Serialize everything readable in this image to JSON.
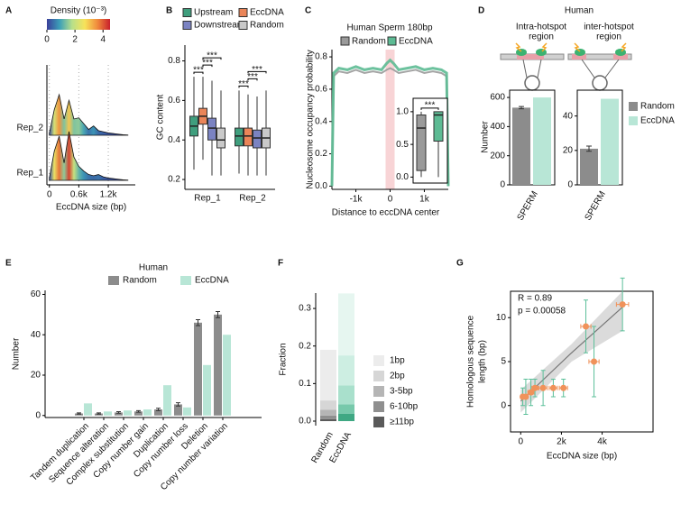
{
  "chart_data": [
    {
      "type": "ridgeline",
      "label": "A",
      "colorbar_title": "Density (10⁻³)",
      "colorbar_lim": [
        0,
        4.5
      ],
      "colorbar_ticks": [
        0,
        2,
        4
      ],
      "colormap": [
        "#3a3f9a",
        "#3b9fb8",
        "#b8e08a",
        "#f7e35a",
        "#f08a3c",
        "#c8202c"
      ],
      "xlabel": "EccDNA size (bp)",
      "x": [
        0,
        100,
        200,
        300,
        400,
        500,
        600,
        700,
        800,
        900,
        1000,
        1100,
        1200,
        1300,
        1400,
        1500,
        1600
      ],
      "xlim": [
        -50,
        1750
      ],
      "xticks": [
        0,
        {
          "value": 600,
          "label": "0.6k"
        },
        {
          "value": 1200,
          "label": "1.2k"
        }
      ],
      "grid": true,
      "series": [
        {
          "name": "Rep_2",
          "values": [
            0.2,
            2.2,
            3.5,
            1.4,
            3.0,
            1.4,
            1.5,
            1.0,
            0.5,
            0.8,
            0.4,
            0.3,
            0.2,
            0.15,
            0.1,
            0.05,
            0.02
          ]
        },
        {
          "name": "Rep_1",
          "values": [
            0.2,
            2.5,
            3.8,
            1.5,
            4.2,
            2.0,
            1.2,
            0.8,
            0.5,
            0.4,
            0.5,
            0.3,
            0.2,
            0.15,
            0.1,
            0.05,
            0.02
          ]
        }
      ]
    },
    {
      "type": "box",
      "label": "B",
      "ylabel": "GC content",
      "categories": [
        "Rep_1",
        "Rep_2"
      ],
      "ylim": [
        0.15,
        0.88
      ],
      "yticks": [
        0.2,
        0.4,
        0.6,
        0.8
      ],
      "series": [
        {
          "name": "Upstream",
          "color": "#3f9e7d",
          "stats": [
            [
              0.25,
              0.42,
              0.47,
              0.52,
              0.72
            ],
            [
              0.23,
              0.37,
              0.42,
              0.46,
              0.65
            ]
          ]
        },
        {
          "name": "EccDNA",
          "color": "#ea8559",
          "stats": [
            [
              0.3,
              0.48,
              0.52,
              0.56,
              0.72
            ],
            [
              0.22,
              0.37,
              0.42,
              0.46,
              0.63
            ]
          ]
        },
        {
          "name": "Downstream",
          "color": "#7b83c2",
          "stats": [
            [
              0.22,
              0.4,
              0.46,
              0.51,
              0.7
            ],
            [
              0.22,
              0.36,
              0.41,
              0.45,
              0.62
            ]
          ]
        },
        {
          "name": "Random",
          "color": "#c9c9c9",
          "stats": [
            [
              0.22,
              0.36,
              0.4,
              0.46,
              0.65
            ],
            [
              0.22,
              0.36,
              0.41,
              0.46,
              0.65
            ]
          ]
        }
      ],
      "annotations": [
        "***",
        "***",
        "***",
        "***",
        "***",
        "***"
      ]
    },
    {
      "type": "line",
      "label": "C",
      "title": "Human Sperm 180bp",
      "xlabel": "Distance to eccDNA center",
      "ylabel": "Nucleosome occupancy probability",
      "x": [
        -1700,
        -1650,
        -1500,
        -1250,
        -1000,
        -750,
        -500,
        -250,
        -100,
        0,
        100,
        250,
        500,
        750,
        1000,
        1250,
        1500,
        1650,
        1700
      ],
      "xlim": [
        -1700,
        1700
      ],
      "xticks": [
        {
          "value": -1000,
          "label": "-1k"
        },
        0,
        {
          "value": 1000,
          "label": "1k"
        }
      ],
      "ylim": [
        -0.02,
        0.845
      ],
      "yticks": [
        {
          "value": 0,
          "label": "0.0"
        },
        0.2,
        0.4,
        0.6,
        0.8
      ],
      "highlight_x": 0,
      "highlight_color": "#f6c9cc",
      "series": [
        {
          "name": "Random",
          "color": "#9a9a9a",
          "values": [
            0,
            0.68,
            0.71,
            0.7,
            0.72,
            0.7,
            0.71,
            0.7,
            0.72,
            0.73,
            0.72,
            0.7,
            0.71,
            0.72,
            0.7,
            0.71,
            0.7,
            0.68,
            0
          ]
        },
        {
          "name": "EccDNA",
          "color": "#5dbb94",
          "values": [
            0,
            0.7,
            0.73,
            0.72,
            0.74,
            0.72,
            0.73,
            0.72,
            0.76,
            0.78,
            0.76,
            0.72,
            0.73,
            0.74,
            0.72,
            0.73,
            0.72,
            0.7,
            0
          ]
        }
      ],
      "inset": {
        "ylim": [
          -0.05,
          1.15
        ],
        "yticks": [
          {
            "value": 0,
            "label": "0.0"
          },
          0.5,
          {
            "value": 1,
            "label": "1.0"
          }
        ],
        "stats": [
          [
            0,
            0.1,
            0.75,
            0.95,
            1
          ],
          [
            0,
            0.55,
            0.95,
            1,
            1
          ]
        ],
        "annotation": "***"
      }
    },
    {
      "type": "bar_pair",
      "label": "D",
      "title": "Human",
      "ylabel": "Number",
      "categories": [
        "SPERM"
      ],
      "series": [
        {
          "name": "Random",
          "color": "#8c8c8c"
        },
        {
          "name": "EccDNA",
          "color": "#b8e6d6"
        }
      ],
      "panels": [
        {
          "title": [
            "Intra-hotspot",
            "region"
          ],
          "ylim": [
            0,
            650
          ],
          "yticks": [
            0,
            200,
            400,
            600
          ],
          "values": [
            530,
            600
          ],
          "errors": [
            8,
            null
          ]
        },
        {
          "title": [
            "inter-hotspot",
            "region"
          ],
          "ylim": [
            0,
            55
          ],
          "yticks": [
            0,
            20,
            40
          ],
          "values": [
            21,
            50
          ],
          "errors": [
            1.5,
            null
          ]
        }
      ]
    },
    {
      "type": "grouped_bar",
      "label": "E",
      "title": "Human",
      "ylabel": "Number",
      "categories": [
        "Tandem duplication",
        "Sequence alteration",
        "Complex substitution",
        "Copy number gain",
        "Duplication",
        "Copy number loss",
        "Deletion",
        "Copy number variation"
      ],
      "ylim": [
        -1,
        62
      ],
      "yticks": [
        0,
        20,
        40,
        60
      ],
      "series": [
        {
          "name": "Random",
          "color": "#8c8c8c",
          "values": [
            1,
            1,
            1.5,
            2,
            3,
            5.5,
            46,
            50
          ],
          "errors": [
            0.3,
            0.3,
            0.4,
            0.4,
            0.6,
            0.8,
            1.5,
            1.5
          ]
        },
        {
          "name": "EccDNA",
          "color": "#b8e6d6",
          "values": [
            6,
            2,
            2.5,
            3,
            15,
            4,
            25,
            40
          ]
        }
      ]
    },
    {
      "type": "stacked_bar",
      "label": "F",
      "ylabel": "Fraction",
      "categories": [
        "Random",
        "EccDNA"
      ],
      "ylim": [
        -0.012,
        0.341
      ],
      "yticks": [
        {
          "value": 0,
          "label": "0.0"
        },
        0.1,
        0.2,
        0.3
      ],
      "series": [
        {
          "name": "1bp",
          "colors": [
            "#ececec",
            "#e6f6f0"
          ],
          "values": [
            0.135,
            0.165
          ]
        },
        {
          "name": "2bp",
          "colors": [
            "#d6d6d6",
            "#cdeee2"
          ],
          "values": [
            0.025,
            0.08
          ]
        },
        {
          "name": "3-5bp",
          "colors": [
            "#b5b5b5",
            "#a9e0cc"
          ],
          "values": [
            0.015,
            0.05
          ]
        },
        {
          "name": "6-10bp",
          "colors": [
            "#8f8f8f",
            "#77c9ab"
          ],
          "values": [
            0.01,
            0.025
          ]
        },
        {
          "name": "≥11bp",
          "colors": [
            "#5a5a5a",
            "#3fa883"
          ],
          "values": [
            0.005,
            0.02
          ]
        }
      ]
    },
    {
      "type": "scatter",
      "label": "G",
      "xlabel": "EccDNA size (bp)",
      "ylabel": [
        "Homologous sequence",
        "length (bp)"
      ],
      "x": [
        100,
        250,
        500,
        700,
        1100,
        1600,
        2100,
        3200,
        3600,
        5000
      ],
      "values": [
        1,
        1,
        1.5,
        2,
        2,
        2,
        2,
        9,
        5,
        11.5
      ],
      "x_errors": [
        100,
        100,
        150,
        150,
        200,
        200,
        200,
        250,
        250,
        300
      ],
      "errors": [
        1,
        2,
        1.5,
        1,
        2,
        1,
        1,
        3,
        4,
        3
      ],
      "color": "#f0925a",
      "error_color": "#5cc09a",
      "xlim": [
        -500,
        6500
      ],
      "xticks": [
        0,
        {
          "value": 2000,
          "label": "2k"
        },
        {
          "value": 4000,
          "label": "4k"
        }
      ],
      "ylim": [
        -3,
        13
      ],
      "yticks": [
        0,
        5,
        10
      ],
      "fit": {
        "x": [
          0,
          2500,
          5000
        ],
        "y": [
          0.5,
          6,
          11.2
        ],
        "lower": [
          -0.8,
          5,
          8.5
        ],
        "upper": [
          1.8,
          7,
          13
        ]
      },
      "annotations": [
        "R = 0.89",
        "p = 0.00058"
      ]
    }
  ]
}
